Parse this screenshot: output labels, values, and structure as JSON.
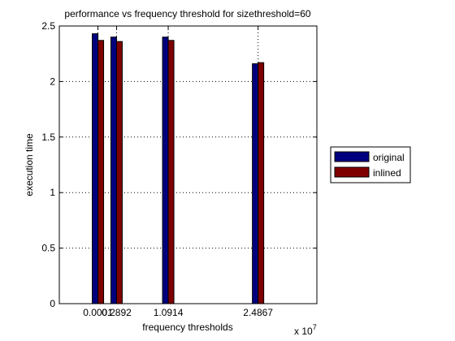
{
  "chart_data": {
    "type": "bar",
    "title": "performance vs frequency threshold for sizethreshold=60",
    "xlabel": "frequency thresholds",
    "ylabel": "execution time",
    "x_exponent_label": "x 10",
    "x_exponent_power": "7",
    "x": [
      0.0001,
      0.2892,
      1.0914,
      2.4867
    ],
    "x_tick_labels": [
      "0.0001",
      "0.2892",
      "1.0914",
      "2.4867"
    ],
    "y_ticks": [
      0,
      0.5,
      1,
      1.5,
      2,
      2.5
    ],
    "y_tick_labels": [
      "0",
      "0.5",
      "1",
      "1.5",
      "2",
      "2.5"
    ],
    "ylim": [
      0,
      2.5
    ],
    "grid": "dotted",
    "legend_position": "outside-right",
    "series": [
      {
        "name": "original",
        "color": "#00007f",
        "values": [
          2.43,
          2.4,
          2.4,
          2.16
        ]
      },
      {
        "name": "inlined",
        "color": "#7f0000",
        "values": [
          2.37,
          2.36,
          2.37,
          2.17
        ]
      }
    ]
  }
}
